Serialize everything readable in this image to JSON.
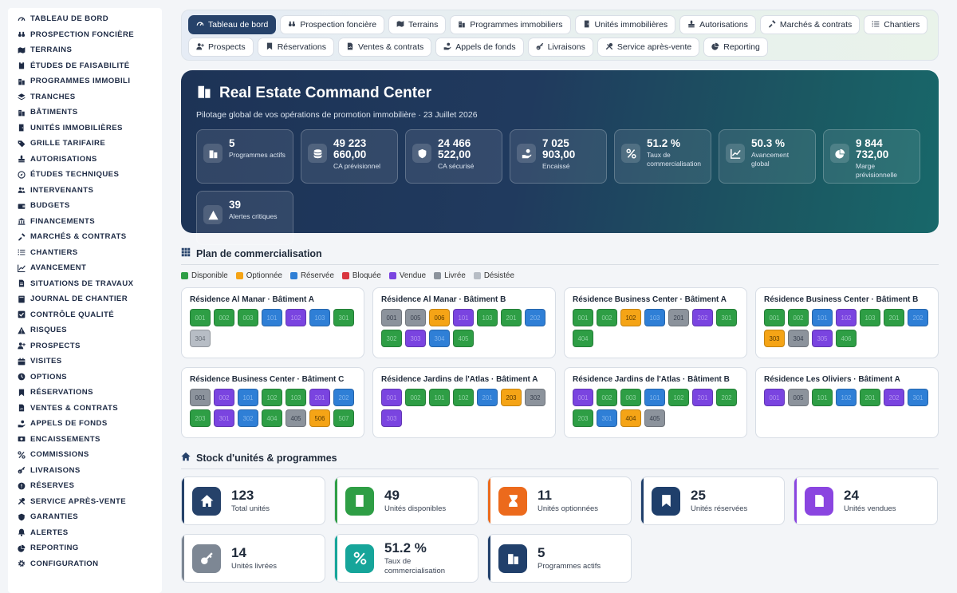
{
  "sidebar": {
    "items": [
      {
        "label": "TABLEAU DE BORD",
        "icon": "gauge-icon"
      },
      {
        "label": "PROSPECTION FONCIÈRE",
        "icon": "binoculars-icon"
      },
      {
        "label": "TERRAINS",
        "icon": "map-icon"
      },
      {
        "label": "ÉTUDES DE FAISABILITÉ",
        "icon": "clipboard-icon"
      },
      {
        "label": "PROGRAMMES IMMOBILI",
        "icon": "building-icon"
      },
      {
        "label": "TRANCHES",
        "icon": "layers-icon"
      },
      {
        "label": "BÂTIMENTS",
        "icon": "building-icon"
      },
      {
        "label": "UNITÉS IMMOBILIÈRES",
        "icon": "door-icon"
      },
      {
        "label": "GRILLE TARIFAIRE",
        "icon": "tag-icon"
      },
      {
        "label": "AUTORISATIONS",
        "icon": "stamp-icon"
      },
      {
        "label": "ÉTUDES TECHNIQUES",
        "icon": "compass-icon"
      },
      {
        "label": "INTERVENANTS",
        "icon": "users-icon"
      },
      {
        "label": "BUDGETS",
        "icon": "wallet-icon"
      },
      {
        "label": "FINANCEMENTS",
        "icon": "bank-icon"
      },
      {
        "label": "MARCHÉS & CONTRATS",
        "icon": "contract-icon"
      },
      {
        "label": "CHANTIERS",
        "icon": "list-icon"
      },
      {
        "label": "AVANCEMENT",
        "icon": "chart-line-icon"
      },
      {
        "label": "SITUATIONS DE TRAVAUX",
        "icon": "file-invoice-icon"
      },
      {
        "label": "JOURNAL DE CHANTIER",
        "icon": "book-icon"
      },
      {
        "label": "CONTRÔLE QUALITÉ",
        "icon": "check-icon"
      },
      {
        "label": "RISQUES",
        "icon": "warning-icon"
      },
      {
        "label": "PROSPECTS",
        "icon": "user-plus-icon"
      },
      {
        "label": "VISITES",
        "icon": "calendar-icon"
      },
      {
        "label": "OPTIONS",
        "icon": "clock-icon"
      },
      {
        "label": "RÉSERVATIONS",
        "icon": "bookmark-icon"
      },
      {
        "label": "VENTES & CONTRATS",
        "icon": "file-signature-icon"
      },
      {
        "label": "APPELS DE FONDS",
        "icon": "hand-coin-icon"
      },
      {
        "label": "ENCAISSEMENTS",
        "icon": "money-icon"
      },
      {
        "label": "COMMISSIONS",
        "icon": "percent-icon"
      },
      {
        "label": "LIVRAISONS",
        "icon": "key-icon"
      },
      {
        "label": "RÉSERVES",
        "icon": "alert-circle-icon"
      },
      {
        "label": "SERVICE APRÈS-VENTE",
        "icon": "tools-icon"
      },
      {
        "label": "GARANTIES",
        "icon": "shield-icon"
      },
      {
        "label": "ALERTES",
        "icon": "bell-icon"
      },
      {
        "label": "REPORTING",
        "icon": "pie-icon"
      },
      {
        "label": "CONFIGURATION",
        "icon": "gear-icon"
      }
    ]
  },
  "tabs": {
    "row1": [
      {
        "label": "Tableau de bord",
        "icon": "gauge-icon",
        "active": true
      },
      {
        "label": "Prospection foncière",
        "icon": "binoculars-icon"
      },
      {
        "label": "Terrains",
        "icon": "map-icon"
      },
      {
        "label": "Programmes immobiliers",
        "icon": "building-icon"
      },
      {
        "label": "Unités immobilières",
        "icon": "door-icon"
      },
      {
        "label": "Autorisations",
        "icon": "stamp-icon"
      },
      {
        "label": "Marchés & contrats",
        "icon": "contract-icon"
      },
      {
        "label": "Chantiers",
        "icon": "list-icon"
      }
    ],
    "row2": [
      {
        "label": "Prospects",
        "icon": "user-plus-icon"
      },
      {
        "label": "Réservations",
        "icon": "bookmark-icon"
      },
      {
        "label": "Ventes & contrats",
        "icon": "file-signature-icon"
      },
      {
        "label": "Appels de fonds",
        "icon": "hand-coin-icon"
      },
      {
        "label": "Livraisons",
        "icon": "key-icon"
      },
      {
        "label": "Service après-vente",
        "icon": "tools-icon"
      },
      {
        "label": "Reporting",
        "icon": "pie-icon"
      }
    ]
  },
  "hero": {
    "title": "Real Estate Command Center",
    "subtitle": "Pilotage global de vos opérations de promotion immobilière · 23 Juillet 2026",
    "kpis": [
      {
        "value": "5",
        "label": "Programmes actifs",
        "icon": "building-icon"
      },
      {
        "value": "49 223 660,00",
        "label": "CA prévisionnel",
        "icon": "coins-icon"
      },
      {
        "value": "24 466 522,00",
        "label": "CA sécurisé",
        "icon": "shield-icon"
      },
      {
        "value": "7 025 903,00",
        "label": "Encaissé",
        "icon": "hand-coin-icon"
      },
      {
        "value": "51.2 %",
        "label": "Taux de commercialisation",
        "icon": "percent-icon"
      },
      {
        "value": "50.3 %",
        "label": "Avancement global",
        "icon": "chart-line-icon"
      },
      {
        "value": "9 844 732,00",
        "label": "Marge prévisionnelle",
        "icon": "pie-icon"
      },
      {
        "value": "39",
        "label": "Alertes critiques",
        "icon": "warning-icon"
      }
    ]
  },
  "plan": {
    "title": "Plan de commercialisation",
    "legend": [
      {
        "label": "Disponible",
        "color": "#2e9e45"
      },
      {
        "label": "Optionnée",
        "color": "#f5a416"
      },
      {
        "label": "Réservée",
        "color": "#2f7fd6"
      },
      {
        "label": "Bloquée",
        "color": "#d9363e"
      },
      {
        "label": "Vendue",
        "color": "#7a44e0"
      },
      {
        "label": "Livrée",
        "color": "#8c939c"
      },
      {
        "label": "Désistée",
        "color": "#b7bdc5"
      }
    ],
    "buildings": [
      {
        "name": "Résidence Al Manar · Bâtiment A",
        "units": [
          {
            "n": "001",
            "s": "disponible"
          },
          {
            "n": "002",
            "s": "disponible"
          },
          {
            "n": "003",
            "s": "disponible"
          },
          {
            "n": "101",
            "s": "reservee"
          },
          {
            "n": "102",
            "s": "vendue"
          },
          {
            "n": "103",
            "s": "reservee"
          },
          {
            "n": "301",
            "s": "disponible"
          },
          {
            "n": "304",
            "s": "desistee"
          }
        ]
      },
      {
        "name": "Résidence Al Manar · Bâtiment B",
        "units": [
          {
            "n": "001",
            "s": "livree"
          },
          {
            "n": "005",
            "s": "livree"
          },
          {
            "n": "006",
            "s": "optionnee"
          },
          {
            "n": "101",
            "s": "vendue"
          },
          {
            "n": "103",
            "s": "disponible"
          },
          {
            "n": "201",
            "s": "disponible"
          },
          {
            "n": "202",
            "s": "reservee"
          },
          {
            "n": "302",
            "s": "disponible"
          },
          {
            "n": "303",
            "s": "vendue"
          },
          {
            "n": "304",
            "s": "reservee"
          },
          {
            "n": "405",
            "s": "disponible"
          }
        ]
      },
      {
        "name": "Résidence Business Center · Bâtiment A",
        "units": [
          {
            "n": "001",
            "s": "disponible"
          },
          {
            "n": "002",
            "s": "disponible"
          },
          {
            "n": "102",
            "s": "optionnee"
          },
          {
            "n": "103",
            "s": "reservee"
          },
          {
            "n": "201",
            "s": "livree"
          },
          {
            "n": "202",
            "s": "vendue"
          },
          {
            "n": "301",
            "s": "disponible"
          },
          {
            "n": "404",
            "s": "disponible"
          }
        ]
      },
      {
        "name": "Résidence Business Center · Bâtiment B",
        "units": [
          {
            "n": "001",
            "s": "disponible"
          },
          {
            "n": "002",
            "s": "disponible"
          },
          {
            "n": "101",
            "s": "reservee"
          },
          {
            "n": "102",
            "s": "vendue"
          },
          {
            "n": "103",
            "s": "disponible"
          },
          {
            "n": "201",
            "s": "disponible"
          },
          {
            "n": "202",
            "s": "reservee"
          },
          {
            "n": "303",
            "s": "optionnee"
          },
          {
            "n": "304",
            "s": "livree"
          },
          {
            "n": "305",
            "s": "vendue"
          },
          {
            "n": "406",
            "s": "disponible"
          }
        ]
      },
      {
        "name": "Résidence Business Center · Bâtiment C",
        "units": [
          {
            "n": "001",
            "s": "livree"
          },
          {
            "n": "002",
            "s": "vendue"
          },
          {
            "n": "101",
            "s": "reservee"
          },
          {
            "n": "102",
            "s": "disponible"
          },
          {
            "n": "103",
            "s": "disponible"
          },
          {
            "n": "201",
            "s": "vendue"
          },
          {
            "n": "202",
            "s": "reservee"
          },
          {
            "n": "203",
            "s": "disponible"
          },
          {
            "n": "301",
            "s": "vendue"
          },
          {
            "n": "302",
            "s": "reservee"
          },
          {
            "n": "404",
            "s": "disponible"
          },
          {
            "n": "405",
            "s": "livree"
          },
          {
            "n": "506",
            "s": "optionnee"
          },
          {
            "n": "507",
            "s": "disponible"
          }
        ]
      },
      {
        "name": "Résidence Jardins de l'Atlas · Bâtiment A",
        "units": [
          {
            "n": "001",
            "s": "vendue"
          },
          {
            "n": "002",
            "s": "disponible"
          },
          {
            "n": "101",
            "s": "disponible"
          },
          {
            "n": "102",
            "s": "disponible"
          },
          {
            "n": "201",
            "s": "reservee"
          },
          {
            "n": "203",
            "s": "optionnee"
          },
          {
            "n": "302",
            "s": "livree"
          },
          {
            "n": "303",
            "s": "vendue"
          }
        ]
      },
      {
        "name": "Résidence Jardins de l'Atlas · Bâtiment B",
        "units": [
          {
            "n": "001",
            "s": "vendue"
          },
          {
            "n": "002",
            "s": "disponible"
          },
          {
            "n": "003",
            "s": "disponible"
          },
          {
            "n": "101",
            "s": "reservee"
          },
          {
            "n": "102",
            "s": "disponible"
          },
          {
            "n": "201",
            "s": "vendue"
          },
          {
            "n": "202",
            "s": "disponible"
          },
          {
            "n": "203",
            "s": "disponible"
          },
          {
            "n": "301",
            "s": "reservee"
          },
          {
            "n": "404",
            "s": "optionnee"
          },
          {
            "n": "405",
            "s": "livree"
          }
        ]
      },
      {
        "name": "Résidence Les Oliviers · Bâtiment A",
        "units": [
          {
            "n": "001",
            "s": "vendue"
          },
          {
            "n": "005",
            "s": "livree"
          },
          {
            "n": "101",
            "s": "disponible"
          },
          {
            "n": "102",
            "s": "reservee"
          },
          {
            "n": "201",
            "s": "disponible"
          },
          {
            "n": "202",
            "s": "vendue"
          },
          {
            "n": "301",
            "s": "reservee"
          }
        ]
      }
    ]
  },
  "stock": {
    "title": "Stock d'unités & programmes",
    "cards": [
      {
        "value": "123",
        "label": "Total unités",
        "icon": "home-icon",
        "color": "#26426a"
      },
      {
        "value": "49",
        "label": "Unités disponibles",
        "icon": "door-icon",
        "color": "#2e9e45"
      },
      {
        "value": "11",
        "label": "Unités optionnées",
        "icon": "hourglass-icon",
        "color": "#ec6a1c"
      },
      {
        "value": "25",
        "label": "Unités réservées",
        "icon": "bookmark-icon",
        "color": "#1f3f6b"
      },
      {
        "value": "24",
        "label": "Unités vendues",
        "icon": "file-signature-icon",
        "color": "#8a45e0"
      },
      {
        "value": "14",
        "label": "Unités livrées",
        "icon": "key-icon",
        "color": "#7d8794"
      },
      {
        "value": "51.2 %",
        "label": "Taux de commercialisation",
        "icon": "percent-icon",
        "color": "#16a59a"
      },
      {
        "value": "5",
        "label": "Programmes actifs",
        "icon": "building-icon",
        "color": "#21406b"
      }
    ]
  }
}
